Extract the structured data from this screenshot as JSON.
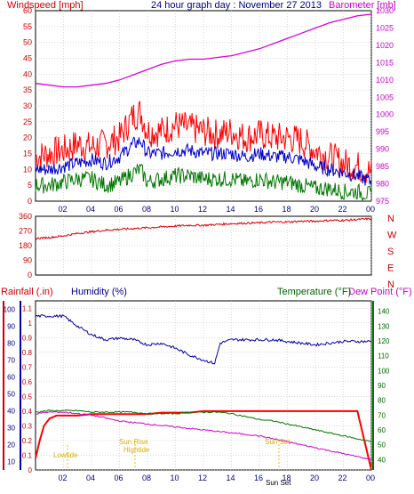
{
  "title": "24 hour graph day : November 27 2013",
  "x_ticks": [
    "02",
    "04",
    "06",
    "08",
    "10",
    "12",
    "14",
    "16",
    "18",
    "20",
    "22",
    "00"
  ],
  "colors": {
    "background": "#ffffff",
    "plot_bg": "#ffffff",
    "grid": "#b0b0b0",
    "frame": "#000000",
    "wind_gust": "#ff0000",
    "wind_avg": "#0000cc",
    "wind_low": "#007700",
    "barometer": "#dd00dd",
    "direction": "#dd0000",
    "rainfall": "#ff0000",
    "humidity": "#0000aa",
    "temperature": "#007700",
    "dew_point": "#cc00cc",
    "label_red": "#cc0000",
    "label_blue": "#000088",
    "label_green": "#006600",
    "label_magenta": "#cc00cc",
    "annotation": "#e0c000"
  },
  "panels": {
    "wind": {
      "left_label": "Windspeed [mph]",
      "right_label": "Barometer [mb]",
      "left_ticks": [
        "0",
        "5",
        "10",
        "15",
        "20",
        "25",
        "30",
        "35",
        "40",
        "45",
        "50",
        "55",
        "60"
      ],
      "right_ticks": [
        "975",
        "980",
        "985",
        "990",
        "995",
        "1000",
        "1005",
        "1010",
        "1015",
        "1020",
        "1025",
        "1030"
      ]
    },
    "direction": {
      "ticks": [
        "0",
        "90",
        "180",
        "270",
        "360"
      ],
      "compass": [
        "N",
        "W",
        "S",
        "E",
        "N"
      ]
    },
    "bottom": {
      "rain_label": "Rainfall (.in)",
      "humidity_label": "Humidity (%)",
      "temp_label": "Temperature (°F)",
      "dew_label": "Dew Point (°F)",
      "rain_ticks": [
        "0",
        "0.1",
        "0.2",
        "0.3",
        "0.4",
        "0.5",
        "0.6",
        "0.7",
        "0.8",
        "0.9",
        "1",
        "1.1"
      ],
      "hum_ticks": [
        "10",
        "20",
        "30",
        "40",
        "50",
        "60",
        "70",
        "80",
        "90",
        "100"
      ],
      "temp_ticks": [
        "40",
        "50",
        "60",
        "70",
        "80",
        "90",
        "100",
        "110",
        "120",
        "130",
        "140"
      ],
      "annotations": {
        "lowtide": "Lowtide",
        "sunrise": "Sun Rise",
        "hightide": "Hightide",
        "sunset_top": "Sun Set",
        "sunset_bottom": "Sun Set"
      }
    }
  },
  "chart_data": [
    {
      "type": "line",
      "x_unit": "hour of day",
      "xlim": [
        0,
        24
      ],
      "ylim": [
        0,
        60
      ],
      "y2lim": [
        975,
        1030
      ],
      "series": [
        {
          "name": "Windspeed (gust)",
          "axis": "left",
          "x": [
            0,
            1,
            2,
            3,
            4,
            5,
            6,
            7,
            7.5,
            8,
            9,
            10,
            11,
            12,
            13,
            14,
            15,
            16,
            17,
            18,
            19,
            20,
            21,
            22,
            23,
            24
          ],
          "y": [
            14,
            15,
            16,
            18,
            17,
            18,
            20,
            27,
            28,
            22,
            22,
            24,
            23,
            22,
            21,
            22,
            20,
            21,
            20,
            20,
            19,
            16,
            14,
            12,
            11,
            9
          ]
        },
        {
          "name": "Windspeed (average)",
          "axis": "left",
          "x": [
            0,
            1,
            2,
            3,
            4,
            5,
            6,
            7,
            7.5,
            8,
            9,
            10,
            11,
            12,
            13,
            14,
            15,
            16,
            17,
            18,
            19,
            20,
            21,
            22,
            23,
            24
          ],
          "y": [
            10,
            10,
            11,
            12,
            13,
            12,
            14,
            18,
            19,
            15,
            15,
            16,
            16,
            15,
            15,
            15,
            14,
            15,
            14,
            14,
            13,
            11,
            10,
            9,
            8,
            6
          ]
        },
        {
          "name": "Windspeed (low)",
          "axis": "left",
          "x": [
            0,
            1,
            2,
            3,
            4,
            5,
            6,
            7,
            7.5,
            8,
            9,
            10,
            11,
            12,
            13,
            14,
            15,
            16,
            17,
            18,
            19,
            20,
            21,
            22,
            23,
            24
          ],
          "y": [
            5,
            5,
            6,
            7,
            7,
            5,
            6,
            9,
            10,
            6,
            7,
            8,
            8,
            7,
            7,
            7,
            6,
            7,
            6,
            6,
            5,
            4,
            4,
            3,
            3,
            2
          ]
        },
        {
          "name": "Barometer",
          "axis": "right",
          "x": [
            0,
            1,
            2,
            3,
            4,
            5,
            6,
            7,
            8,
            9,
            10,
            11,
            12,
            13,
            14,
            15,
            16,
            17,
            18,
            19,
            20,
            21,
            22,
            23,
            24
          ],
          "y": [
            1009,
            1008.5,
            1008,
            1008,
            1008.5,
            1009,
            1010,
            1011.5,
            1013,
            1014.5,
            1015.5,
            1016,
            1016,
            1016.5,
            1017,
            1018,
            1019,
            1020.5,
            1022,
            1023.5,
            1025,
            1026.5,
            1027.5,
            1028.5,
            1029
          ]
        }
      ]
    },
    {
      "type": "line",
      "x_unit": "hour of day",
      "xlim": [
        0,
        24
      ],
      "ylim": [
        0,
        360
      ],
      "series": [
        {
          "name": "Wind direction",
          "x": [
            0,
            1,
            2,
            3,
            4,
            5,
            6,
            7,
            8,
            9,
            10,
            11,
            12,
            13,
            14,
            15,
            16,
            17,
            18,
            19,
            20,
            21,
            22,
            23,
            24
          ],
          "y": [
            225,
            230,
            240,
            255,
            265,
            275,
            280,
            285,
            290,
            295,
            300,
            305,
            305,
            310,
            315,
            318,
            320,
            325,
            325,
            330,
            330,
            335,
            335,
            340,
            345
          ]
        }
      ]
    },
    {
      "type": "line",
      "x_unit": "hour of day",
      "xlim": [
        0,
        24
      ],
      "ylim": [
        0,
        1.15
      ],
      "series": [
        {
          "name": "Rainfall",
          "axis": "rain",
          "x": [
            0,
            0.3,
            0.6,
            1,
            1.5,
            2,
            3,
            4,
            5,
            6,
            7,
            8,
            9,
            10,
            11,
            12,
            13,
            14,
            15,
            16,
            17,
            18,
            19,
            20,
            21,
            22,
            23,
            24
          ],
          "y": [
            0.08,
            0.2,
            0.3,
            0.35,
            0.37,
            0.37,
            0.37,
            0.38,
            0.38,
            0.38,
            0.38,
            0.38,
            0.39,
            0.39,
            0.39,
            0.4,
            0.4,
            0.4,
            0.4,
            0.4,
            0.4,
            0.4,
            0.4,
            0.4,
            0.4,
            0.4,
            0.4,
            0
          ]
        },
        {
          "name": "Humidity",
          "axis": "humidity",
          "x": [
            0,
            1,
            2,
            3,
            4,
            5,
            6,
            7,
            8,
            9,
            10,
            11,
            12,
            12.8,
            13.2,
            14,
            15,
            16,
            17,
            18,
            19,
            20,
            21,
            22,
            23,
            24
          ],
          "y": [
            96,
            96,
            96,
            90,
            85,
            82,
            83,
            82,
            79,
            80,
            77,
            73,
            70,
            68,
            80,
            82,
            82,
            82,
            82,
            81,
            80,
            79,
            80,
            81,
            81,
            81
          ]
        },
        {
          "name": "Temperature",
          "axis": "temperature",
          "x": [
            0,
            1,
            2,
            3,
            4,
            5,
            6,
            7,
            8,
            9,
            10,
            11,
            12,
            13,
            14,
            15,
            16,
            17,
            18,
            19,
            20,
            21,
            22,
            23,
            24
          ],
          "y": [
            72,
            73,
            73,
            73,
            72,
            72,
            72,
            72,
            71,
            71,
            71,
            72,
            72,
            72,
            71,
            69,
            67,
            66,
            64,
            62,
            60,
            58,
            56,
            54,
            52
          ]
        },
        {
          "name": "Dew Point",
          "axis": "temperature",
          "x": [
            0,
            1,
            2,
            3,
            4,
            5,
            6,
            7,
            8,
            9,
            10,
            11,
            12,
            13,
            14,
            15,
            16,
            17,
            18,
            19,
            20,
            21,
            22,
            23,
            24
          ],
          "y": [
            71,
            72,
            72,
            71,
            70,
            68,
            66,
            65,
            64,
            63,
            62,
            61,
            60,
            59,
            58,
            57,
            56,
            54,
            52,
            50,
            48,
            46,
            44,
            42,
            40
          ]
        }
      ]
    }
  ]
}
